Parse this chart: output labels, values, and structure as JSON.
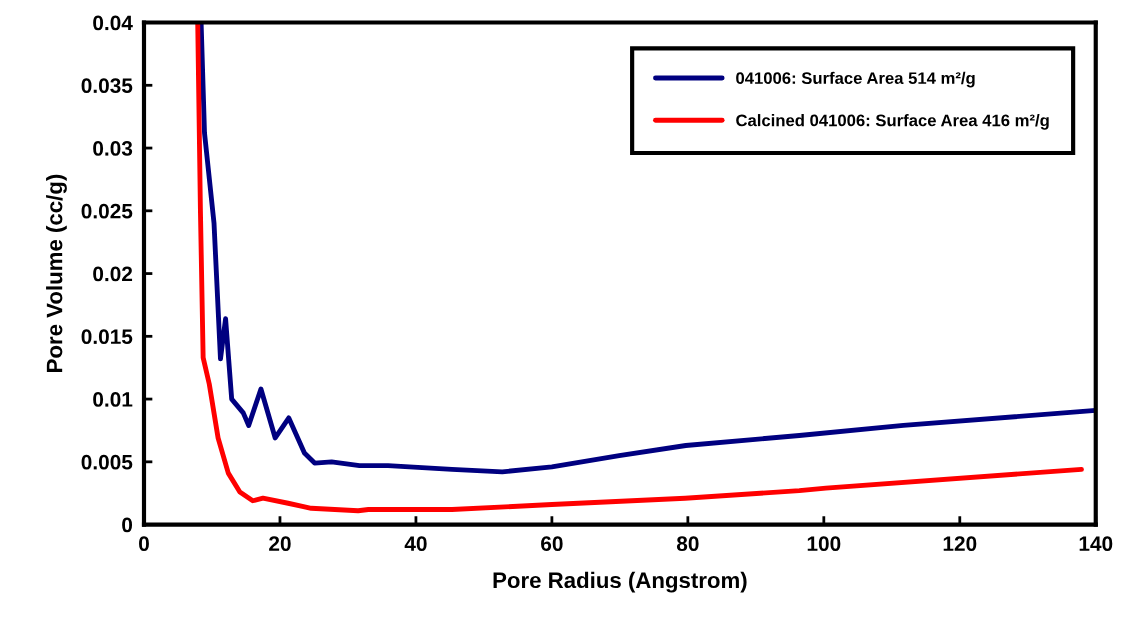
{
  "chart_data": {
    "type": "line",
    "xlabel": "Pore Radius (Angstrom)",
    "ylabel": "Pore Volume (cc/g)",
    "xlim": [
      0,
      140
    ],
    "ylim": [
      0,
      0.04
    ],
    "xticks": [
      0,
      20,
      40,
      60,
      80,
      100,
      120,
      140
    ],
    "yticks": [
      0,
      0.005,
      0.01,
      0.015,
      0.02,
      0.025,
      0.03,
      0.035,
      0.04
    ],
    "grid": false,
    "legend": "top right",
    "marker": "none",
    "line_style": "solid",
    "series": [
      {
        "name": "041006: Surface Area 514 m²/g",
        "color": "#000080",
        "x": [
          8.4,
          8.9,
          10.3,
          11.25,
          12.0,
          12.9,
          14.6,
          15.4,
          17.2,
          19.3,
          21.3,
          23.6,
          25.1,
          27.6,
          31.7,
          35.9,
          45.3,
          52.7,
          60,
          69.9,
          79.7,
          96.4,
          111.7,
          140
        ],
        "values": [
          0.04,
          0.0312,
          0.024,
          0.0132,
          0.0164,
          0.01,
          0.0089,
          0.0079,
          0.0108,
          0.0069,
          0.0085,
          0.0057,
          0.0049,
          0.005,
          0.0047,
          0.0047,
          0.0044,
          0.0042,
          0.0046,
          0.0055,
          0.0063,
          0.0071,
          0.0079,
          0.0091
        ]
      },
      {
        "name": "Calcined 041006: Surface Area 416 m²/g",
        "color": "#ff0000",
        "x": [
          7.9,
          8.3,
          8.7,
          9.6,
          10.9,
          12.4,
          14.1,
          16.0,
          17.5,
          21.2,
          24.6,
          31.5,
          33,
          45.3,
          60,
          79.6,
          96.4,
          100.3,
          137.9
        ],
        "values": [
          0.04,
          0.025,
          0.0133,
          0.0112,
          0.0069,
          0.0041,
          0.0026,
          0.0019,
          0.0021,
          0.0017,
          0.0013,
          0.0011,
          0.0012,
          0.0012,
          0.0016,
          0.0021,
          0.0027,
          0.0029,
          0.0044
        ]
      }
    ]
  }
}
